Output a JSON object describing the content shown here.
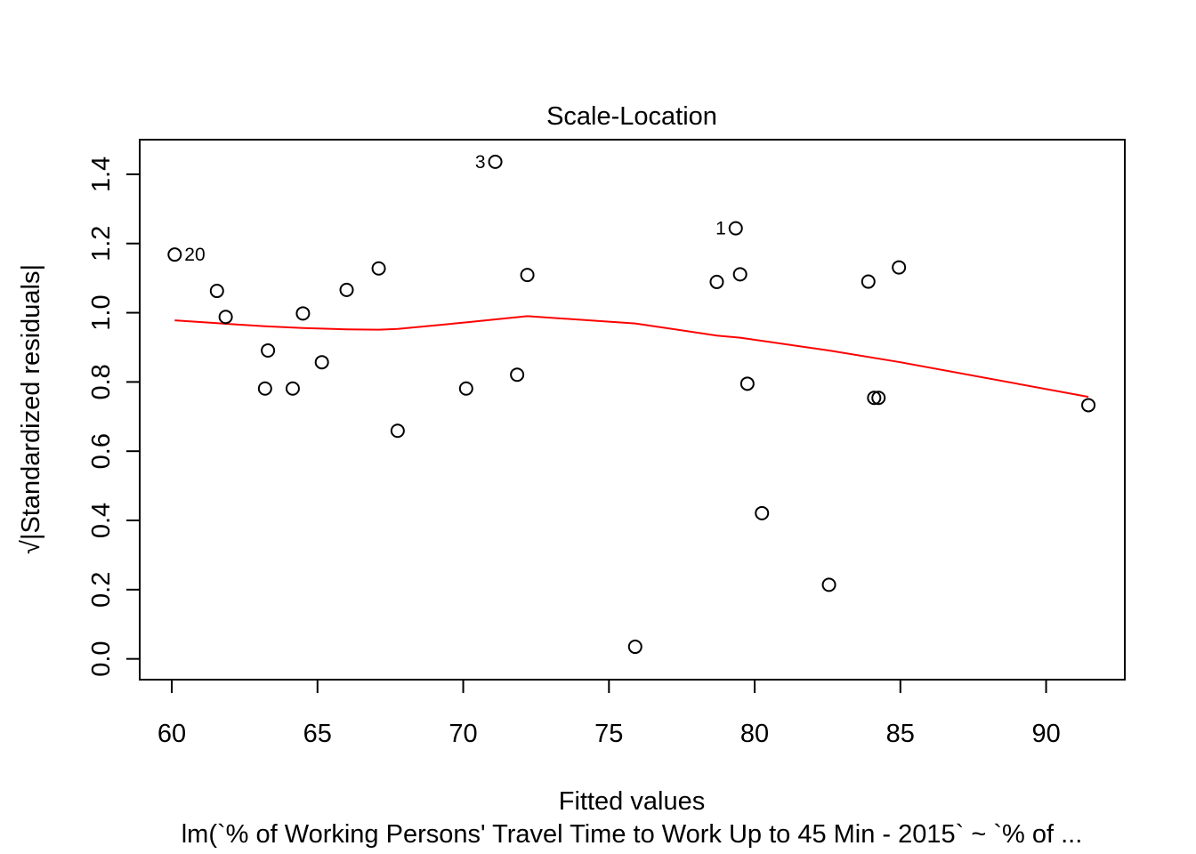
{
  "chart_data": {
    "type": "scatter",
    "title": "Scale-Location",
    "xlabel": "Fitted values",
    "ylabel": "√|Standardized residuals|",
    "subtitle": "lm(`% of Working Persons' Travel Time to Work Up to 45 Min - 2015` ~ `% of  ...",
    "xlim": [
      58.9,
      92.7
    ],
    "ylim": [
      -0.06,
      1.5
    ],
    "x_ticks": [
      60,
      65,
      70,
      75,
      80,
      85,
      90
    ],
    "x_tick_labels": [
      "60",
      "65",
      "70",
      "75",
      "80",
      "85",
      "90"
    ],
    "y_ticks": [
      0.0,
      0.2,
      0.4,
      0.6,
      0.8,
      1.0,
      1.2,
      1.4
    ],
    "y_tick_labels": [
      "0.0",
      "0.2",
      "0.4",
      "0.6",
      "0.8",
      "1.0",
      "1.2",
      "1.4"
    ],
    "grid": false,
    "points": [
      {
        "x": 60.1,
        "y": 1.168,
        "label": "20"
      },
      {
        "x": 61.55,
        "y": 1.063,
        "label": ""
      },
      {
        "x": 61.85,
        "y": 0.988,
        "label": ""
      },
      {
        "x": 63.2,
        "y": 0.781,
        "label": ""
      },
      {
        "x": 63.3,
        "y": 0.891,
        "label": ""
      },
      {
        "x": 64.15,
        "y": 0.781,
        "label": ""
      },
      {
        "x": 64.5,
        "y": 0.998,
        "label": ""
      },
      {
        "x": 65.15,
        "y": 0.857,
        "label": ""
      },
      {
        "x": 66.0,
        "y": 1.066,
        "label": ""
      },
      {
        "x": 67.1,
        "y": 1.128,
        "label": ""
      },
      {
        "x": 67.75,
        "y": 0.659,
        "label": ""
      },
      {
        "x": 70.1,
        "y": 0.781,
        "label": ""
      },
      {
        "x": 71.1,
        "y": 1.436,
        "label": "3"
      },
      {
        "x": 71.85,
        "y": 0.821,
        "label": ""
      },
      {
        "x": 72.2,
        "y": 1.109,
        "label": ""
      },
      {
        "x": 75.9,
        "y": 0.035,
        "label": ""
      },
      {
        "x": 78.7,
        "y": 1.089,
        "label": ""
      },
      {
        "x": 79.35,
        "y": 1.244,
        "label": "1"
      },
      {
        "x": 79.5,
        "y": 1.111,
        "label": ""
      },
      {
        "x": 79.75,
        "y": 0.795,
        "label": ""
      },
      {
        "x": 80.25,
        "y": 0.421,
        "label": ""
      },
      {
        "x": 82.55,
        "y": 0.214,
        "label": ""
      },
      {
        "x": 83.9,
        "y": 1.09,
        "label": ""
      },
      {
        "x": 84.1,
        "y": 0.754,
        "label": ""
      },
      {
        "x": 84.25,
        "y": 0.754,
        "label": ""
      },
      {
        "x": 84.95,
        "y": 1.131,
        "label": ""
      },
      {
        "x": 91.45,
        "y": 0.733,
        "label": ""
      }
    ],
    "smooth_line": {
      "color": "#ff0000",
      "x": [
        60.1,
        61.55,
        61.85,
        63.2,
        64.5,
        66.0,
        67.1,
        67.75,
        70.1,
        72.2,
        75.9,
        78.7,
        79.5,
        82.55,
        85.0,
        91.45
      ],
      "y": [
        0.978,
        0.97,
        0.968,
        0.961,
        0.956,
        0.952,
        0.951,
        0.953,
        0.972,
        0.99,
        0.969,
        0.934,
        0.928,
        0.891,
        0.857,
        0.757
      ]
    },
    "point_style": "open-circle",
    "colors": {
      "points": "#000000",
      "smooth": "#ff0000",
      "axes": "#000000"
    }
  }
}
